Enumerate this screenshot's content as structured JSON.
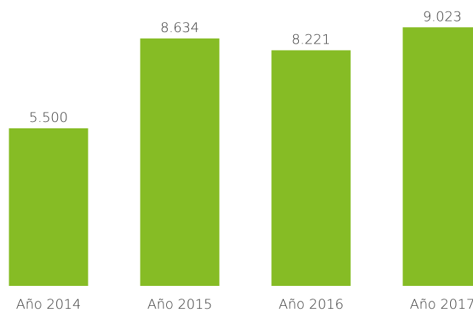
{
  "chart_data": {
    "type": "bar",
    "categories": [
      "Año 2014",
      "Año 2015",
      "Año 2016",
      "Año 2017"
    ],
    "values": [
      5500,
      8634,
      8221,
      9023
    ],
    "value_labels": [
      "5.500",
      "8.634",
      "8.221",
      "9.023"
    ],
    "color": "#86bc25"
  }
}
